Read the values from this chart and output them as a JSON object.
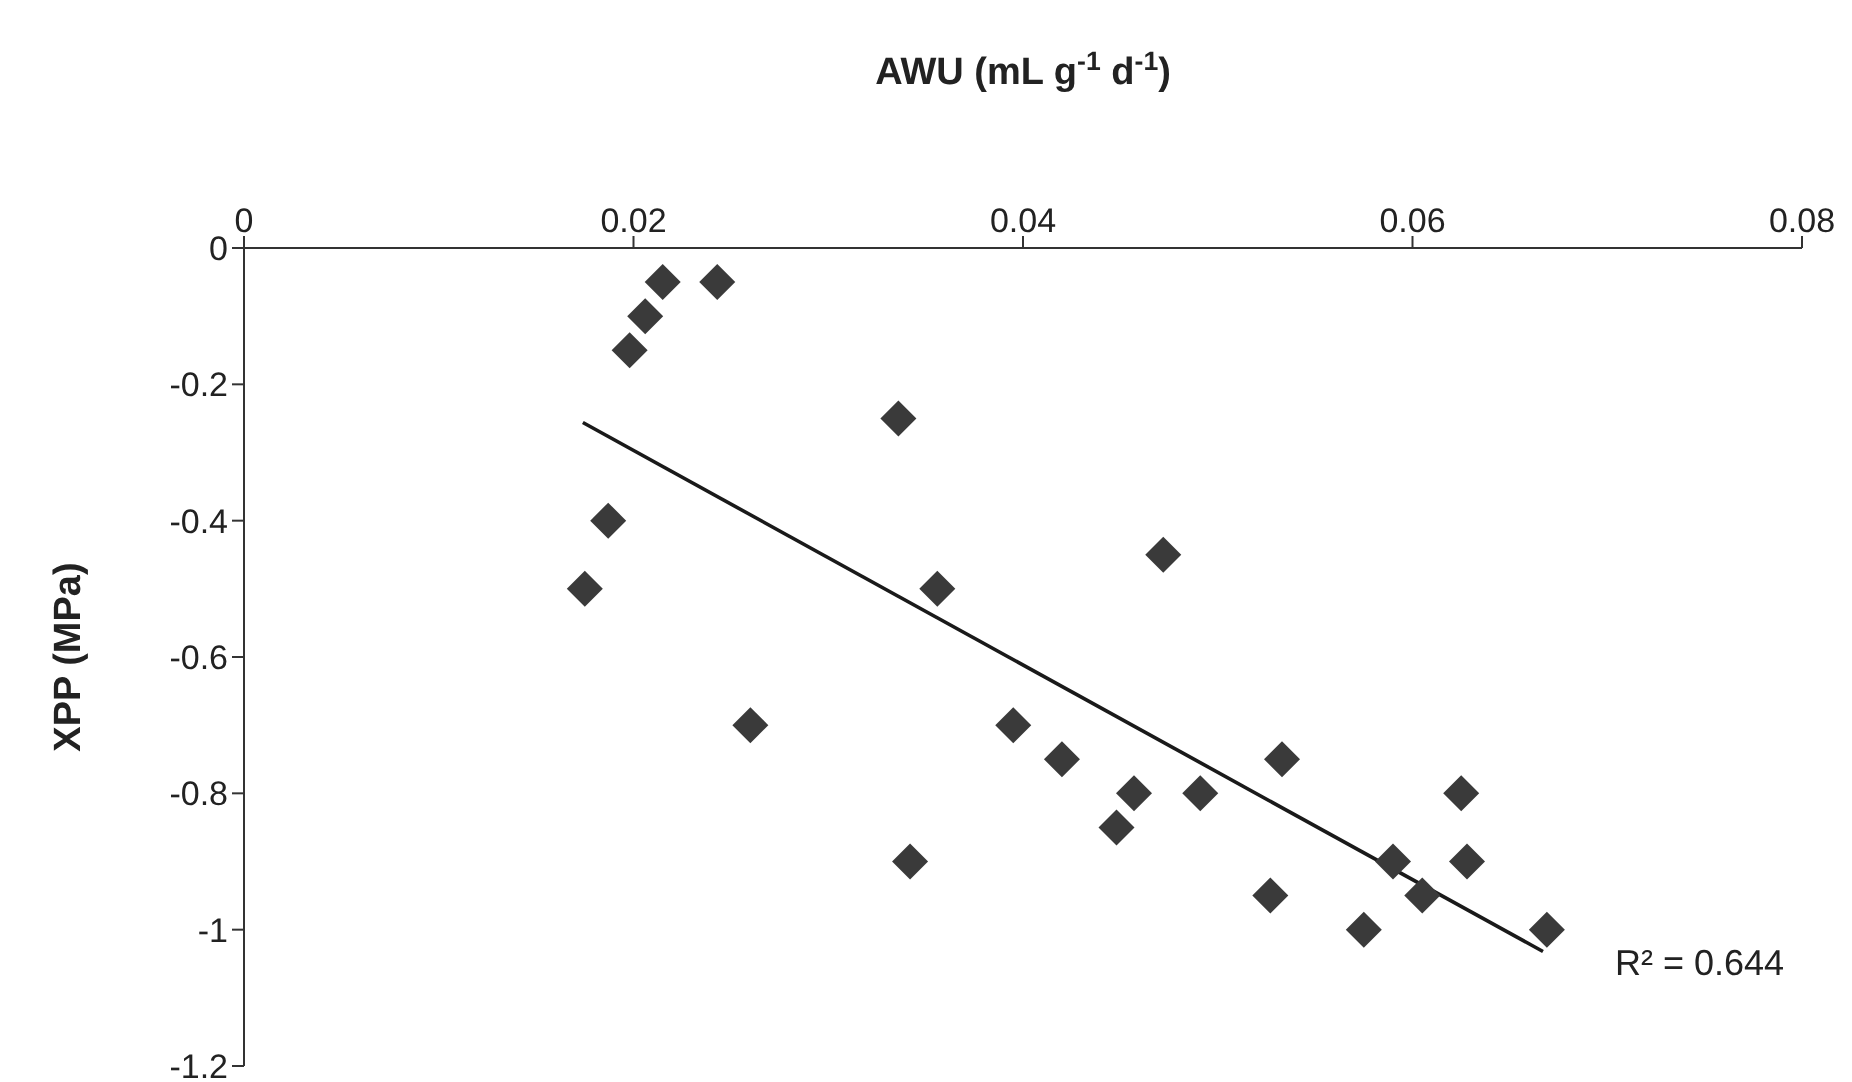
{
  "chart_data": {
    "type": "scatter",
    "xlabel": "AWU (mL g$^{-1}$ d$^{-1}$)",
    "ylabel": "XPP (MPa)",
    "xlim": [
      0,
      0.08
    ],
    "xticks": [
      0,
      0.02,
      0.04,
      0.06,
      0.08
    ],
    "ylim": [
      -1.2,
      0
    ],
    "yticks": [
      0,
      -0.2,
      -0.4,
      -0.6,
      -0.8,
      -1,
      -1.2
    ],
    "grid": false,
    "legend": false,
    "series": [
      {
        "marker": "diamond",
        "color": "#3a3a3a",
        "x": [
          0.0215,
          0.0243,
          0.0206,
          0.0198,
          0.0336,
          0.0187,
          0.0175,
          0.0356,
          0.026,
          0.0395,
          0.0342,
          0.0472,
          0.042,
          0.0457,
          0.0448,
          0.0491,
          0.0533,
          0.0527,
          0.0575,
          0.059,
          0.0605,
          0.0625,
          0.0628,
          0.0669
        ],
        "values": [
          -0.05,
          -0.05,
          -0.1,
          -0.15,
          -0.25,
          -0.4,
          -0.5,
          -0.5,
          -0.7,
          -0.7,
          -0.9,
          -0.45,
          -0.75,
          -0.8,
          -0.85,
          -0.8,
          -0.75,
          -0.95,
          -1,
          -0.9,
          -0.95,
          -0.8,
          -0.9,
          -1
        ]
      },
      {
        "type": "line",
        "color": "#1a1a1a",
        "x": [
          0.0174,
          0.0667
        ],
        "values": [
          -0.256,
          -1.032
        ]
      }
    ],
    "annotations": [
      {
        "text": "R² = 0.644",
        "x": 0.0667,
        "y": -1.032
      }
    ]
  }
}
